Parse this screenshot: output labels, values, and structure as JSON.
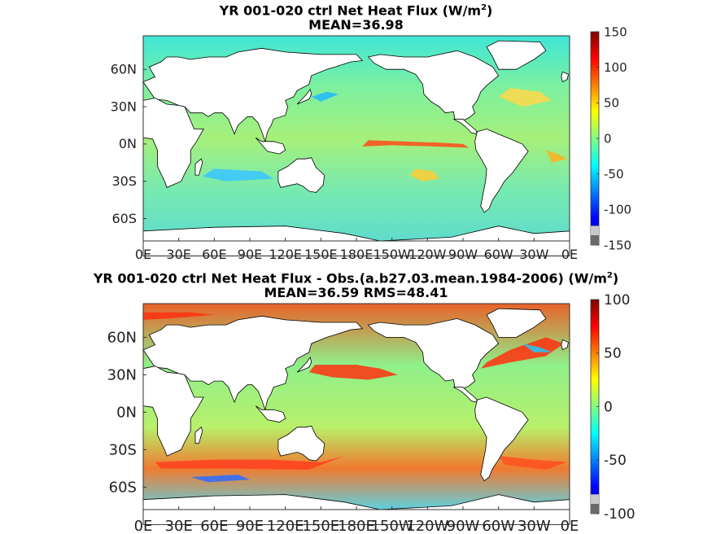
{
  "chart_data": [
    {
      "type": "heatmap",
      "title_prefix": "YR 001-020 ctrl  Net Heat Flux (W/m",
      "title_sup": "2",
      "title_suffix": ")",
      "subtitle": "MEAN=36.98",
      "xlabels": [
        "0E",
        "30E",
        "60E",
        "90E",
        "120E",
        "150E",
        "180E",
        "150W",
        "120W",
        "90W",
        "60W",
        "30W",
        "0E"
      ],
      "ylabels": [
        "60N",
        "30N",
        "0N",
        "30S",
        "60S"
      ],
      "colorbar": {
        "min": -150,
        "max": 150,
        "ticks": [
          "150",
          "100",
          "50",
          "0",
          "-50",
          "-100",
          "-150"
        ]
      }
    },
    {
      "type": "heatmap",
      "title_prefix": "YR 001-020 ctrl  Net Heat Flux - Obs.(a.b27.03.mean.1984-2006) (W/m",
      "title_sup": "2",
      "title_suffix": ")",
      "subtitle": "MEAN=36.59 RMS=48.41",
      "xlabels": [
        "0E",
        "30E",
        "60E",
        "90E",
        "120E",
        "150E",
        "180E",
        "150W",
        "120W",
        "90W",
        "60W",
        "30W",
        "0E"
      ],
      "ylabels": [
        "60N",
        "30N",
        "0N",
        "30S",
        "60S"
      ],
      "colorbar": {
        "min": -100,
        "max": 100,
        "ticks": [
          "100",
          "50",
          "0",
          "-50",
          "-100"
        ]
      }
    }
  ]
}
